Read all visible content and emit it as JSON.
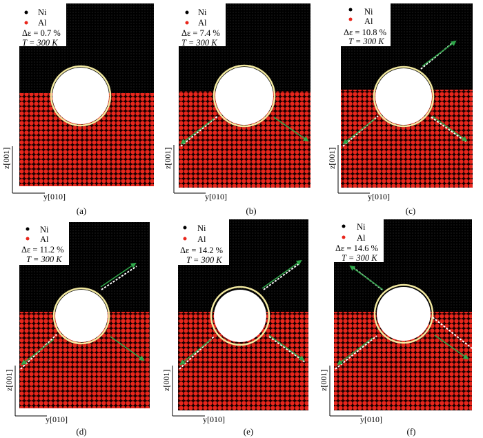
{
  "legend": {
    "ni_label": "Ni",
    "al_label": "Al",
    "ni_color": "#000000",
    "al_color": "#e8261c"
  },
  "axes": {
    "z_label": "z[001]",
    "y_label": "y[010]"
  },
  "colors": {
    "circle": "#f2e9a0",
    "arrow": "#2fa84a",
    "bond": "#ffffff",
    "black_atom": "#000000",
    "red_atom": "#e8261c"
  },
  "panels": [
    {
      "id": "a",
      "caption": "(a)",
      "strain": "Δε = 0.7 %",
      "temperature": "T = 300 K"
    },
    {
      "id": "b",
      "caption": "(b)",
      "strain": "Δε = 7.4 %",
      "temperature": "T = 300 K"
    },
    {
      "id": "c",
      "caption": "(c)",
      "strain": "Δε = 10.8 %",
      "temperature": "T = 300 K"
    },
    {
      "id": "d",
      "caption": "(d)",
      "strain": "Δε = 11.2 %",
      "temperature": "T = 300 K"
    },
    {
      "id": "e",
      "caption": "(e)",
      "strain": "Δε = 14.2 %",
      "temperature": "T = 300 K"
    },
    {
      "id": "f",
      "caption": "(f)",
      "strain": "Δε = 14.6 %",
      "temperature": "T = 300 K"
    }
  ]
}
